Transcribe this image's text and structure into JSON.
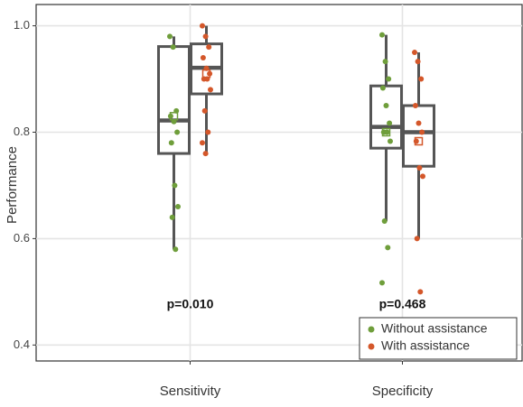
{
  "chart_data": {
    "type": "box",
    "y_label": "Performance",
    "categories": [
      "Sensitivity",
      "Specificity"
    ],
    "ylim": [
      0.37,
      1.04
    ],
    "yticks": [
      0.4,
      0.6,
      0.8,
      {
        "value": 1,
        "label": "1.0"
      }
    ],
    "grid": true,
    "legend_position": "bottom-right",
    "series": [
      {
        "name": "Without assistance",
        "color": "#6f9e3b",
        "boxes": [
          {
            "whisker_low": 0.58,
            "q1": 0.76,
            "median": 0.822,
            "q3": 0.961,
            "whisker_high": 0.98,
            "mean": 0.83
          },
          {
            "whisker_low": 0.633,
            "q1": 0.77,
            "median": 0.81,
            "q3": 0.887,
            "whisker_high": 0.983,
            "mean": 0.8
          }
        ],
        "points": [
          [
            0.98,
            0.96,
            0.84,
            0.83,
            0.82,
            0.8,
            0.78,
            0.7,
            0.66,
            0.64,
            0.58
          ],
          [
            0.983,
            0.933,
            0.9,
            0.883,
            0.85,
            0.817,
            0.8,
            0.8,
            0.783,
            0.633,
            0.583,
            0.517
          ]
        ]
      },
      {
        "name": "With assistance",
        "color": "#d4572a",
        "boxes": [
          {
            "whisker_low": 0.76,
            "q1": 0.872,
            "median": 0.921,
            "q3": 0.966,
            "whisker_high": 1.0,
            "mean": 0.91
          },
          {
            "whisker_low": 0.6,
            "q1": 0.736,
            "median": 0.8,
            "q3": 0.85,
            "whisker_high": 0.95,
            "mean": 0.783
          }
        ],
        "points": [
          [
            1.0,
            0.98,
            0.96,
            0.94,
            0.92,
            0.91,
            0.9,
            0.9,
            0.88,
            0.84,
            0.8,
            0.78,
            0.76
          ],
          [
            0.95,
            0.933,
            0.9,
            0.85,
            0.817,
            0.8,
            0.783,
            0.733,
            0.717,
            0.6,
            0.5
          ]
        ]
      }
    ],
    "annotations": [
      "p=0.010",
      "p=0.468"
    ]
  }
}
